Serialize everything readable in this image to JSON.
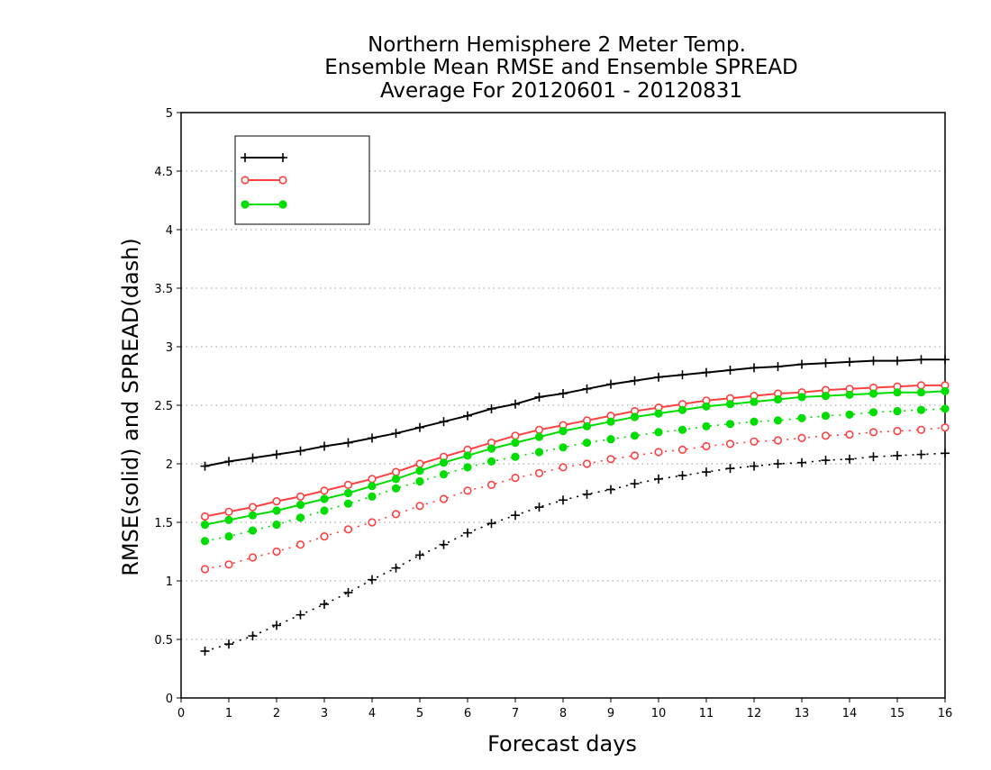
{
  "chart_data": {
    "type": "line",
    "title": [
      "Northern Hemisphere 2 Meter Temp.",
      "Ensemble Mean RMSE and Ensemble SPREAD",
      "Average For 20120601 - 20120831"
    ],
    "xlabel": "Forecast days",
    "ylabel": "RMSE(solid) and SPREAD(dash)",
    "xlim": [
      0,
      16
    ],
    "ylim": [
      0,
      5
    ],
    "xticks": [
      0,
      1,
      2,
      3,
      4,
      5,
      6,
      7,
      8,
      9,
      10,
      11,
      12,
      13,
      14,
      15,
      16
    ],
    "xtick_labels": [
      "0",
      "1",
      "2",
      "3",
      "4",
      "5",
      "6",
      "7",
      "8",
      "9",
      "10",
      "11",
      "12",
      "13",
      "14",
      "15",
      "16"
    ],
    "yticks": [
      0,
      0.5,
      1,
      1.5,
      2,
      2.5,
      3,
      3.5,
      4,
      4.5,
      5
    ],
    "ytick_labels": [
      "0",
      "0.5",
      "1",
      "1.5",
      "2",
      "2.5",
      "3",
      "3.5",
      "4",
      "4.5",
      "5"
    ],
    "grid": "horizontal dotted",
    "legend_position": "top-left",
    "x": [
      0.5,
      1,
      1.5,
      2,
      2.5,
      3,
      3.5,
      4,
      4.5,
      5,
      5.5,
      6,
      6.5,
      7,
      7.5,
      8,
      8.5,
      9,
      9.5,
      10,
      10.5,
      11,
      11.5,
      12,
      12.5,
      13,
      13.5,
      14,
      14.5,
      15,
      15.5,
      16
    ],
    "series": [
      {
        "name": "",
        "color": "#000000",
        "marker": "plus",
        "rmse": [
          1.98,
          2.02,
          2.05,
          2.08,
          2.11,
          2.15,
          2.18,
          2.22,
          2.26,
          2.31,
          2.36,
          2.41,
          2.47,
          2.51,
          2.57,
          2.6,
          2.64,
          2.68,
          2.71,
          2.74,
          2.76,
          2.78,
          2.8,
          2.82,
          2.83,
          2.85,
          2.86,
          2.87,
          2.88,
          2.88,
          2.89,
          2.89
        ],
        "spread": [
          0.4,
          0.46,
          0.53,
          0.62,
          0.71,
          0.8,
          0.9,
          1.01,
          1.11,
          1.22,
          1.31,
          1.41,
          1.49,
          1.56,
          1.63,
          1.69,
          1.74,
          1.78,
          1.83,
          1.87,
          1.9,
          1.93,
          1.96,
          1.98,
          2.0,
          2.01,
          2.03,
          2.04,
          2.06,
          2.07,
          2.08,
          2.09
        ]
      },
      {
        "name": "",
        "color": "#ff4040",
        "marker": "open-circle",
        "rmse": [
          1.55,
          1.59,
          1.63,
          1.68,
          1.72,
          1.77,
          1.82,
          1.87,
          1.93,
          2.0,
          2.06,
          2.12,
          2.18,
          2.24,
          2.29,
          2.33,
          2.37,
          2.41,
          2.45,
          2.48,
          2.51,
          2.54,
          2.56,
          2.58,
          2.6,
          2.61,
          2.63,
          2.64,
          2.65,
          2.66,
          2.67,
          2.67
        ],
        "spread": [
          1.1,
          1.14,
          1.2,
          1.25,
          1.31,
          1.38,
          1.44,
          1.5,
          1.57,
          1.64,
          1.7,
          1.77,
          1.82,
          1.88,
          1.92,
          1.97,
          2.0,
          2.04,
          2.07,
          2.1,
          2.12,
          2.15,
          2.17,
          2.19,
          2.2,
          2.22,
          2.24,
          2.25,
          2.27,
          2.28,
          2.29,
          2.31
        ]
      },
      {
        "name": "",
        "color": "#00dd00",
        "marker": "filled-circle",
        "rmse": [
          1.48,
          1.52,
          1.56,
          1.6,
          1.65,
          1.7,
          1.75,
          1.81,
          1.87,
          1.94,
          2.01,
          2.07,
          2.13,
          2.18,
          2.23,
          2.28,
          2.32,
          2.36,
          2.4,
          2.43,
          2.46,
          2.49,
          2.51,
          2.53,
          2.55,
          2.57,
          2.58,
          2.59,
          2.6,
          2.61,
          2.61,
          2.62
        ],
        "spread": [
          1.34,
          1.38,
          1.43,
          1.48,
          1.54,
          1.6,
          1.66,
          1.72,
          1.79,
          1.85,
          1.91,
          1.97,
          2.02,
          2.06,
          2.1,
          2.14,
          2.18,
          2.21,
          2.24,
          2.27,
          2.29,
          2.32,
          2.34,
          2.36,
          2.37,
          2.39,
          2.41,
          2.42,
          2.44,
          2.45,
          2.46,
          2.47
        ]
      }
    ]
  }
}
